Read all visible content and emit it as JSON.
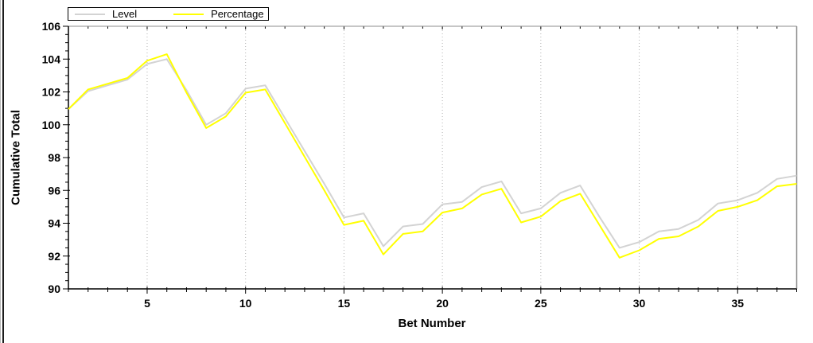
{
  "chart_data": {
    "type": "line",
    "title": "",
    "xlabel": "Bet Number",
    "ylabel": "Cumulative Total",
    "xlim": [
      1,
      38
    ],
    "ylim": [
      90,
      106
    ],
    "x_major_ticks": [
      5,
      10,
      15,
      20,
      25,
      30,
      35
    ],
    "x_minor_step": 1,
    "y_major_ticks": [
      90,
      92,
      94,
      96,
      98,
      100,
      102,
      104,
      106
    ],
    "y_minor_step": 0.5,
    "grid": "vertical dotted lines at x major ticks only",
    "legend_position": "top-left",
    "x": [
      1,
      2,
      3,
      4,
      5,
      6,
      7,
      8,
      9,
      10,
      11,
      12,
      13,
      14,
      15,
      16,
      17,
      18,
      19,
      20,
      21,
      22,
      23,
      24,
      25,
      26,
      27,
      28,
      29,
      30,
      31,
      32,
      33,
      34,
      35,
      36,
      37,
      38
    ],
    "series": [
      {
        "name": "Level",
        "color": "#d3d3d3",
        "values": [
          100.95,
          102.05,
          102.4,
          102.75,
          103.7,
          104.0,
          102.1,
          100.0,
          100.7,
          102.2,
          102.4,
          100.4,
          98.4,
          96.4,
          94.35,
          94.6,
          92.6,
          93.8,
          93.95,
          95.15,
          95.3,
          96.2,
          96.55,
          94.6,
          94.9,
          95.85,
          96.3,
          94.35,
          92.5,
          92.85,
          93.5,
          93.65,
          94.2,
          95.2,
          95.4,
          95.85,
          96.7,
          96.9
        ]
      },
      {
        "name": "Percentage",
        "color": "#ffff00",
        "values": [
          100.95,
          102.15,
          102.5,
          102.85,
          103.9,
          104.3,
          101.95,
          99.8,
          100.5,
          101.95,
          102.15,
          100.1,
          98.05,
          96.0,
          93.9,
          94.15,
          92.1,
          93.35,
          93.5,
          94.65,
          94.9,
          95.75,
          96.1,
          94.05,
          94.4,
          95.35,
          95.8,
          93.85,
          91.9,
          92.35,
          93.05,
          93.2,
          93.8,
          94.75,
          95.0,
          95.4,
          96.25,
          96.4
        ]
      }
    ],
    "style": {
      "grid_color": "#b0b0b0",
      "axis_color": "#000000",
      "box_color": "#8c8c8c",
      "text_color": "#000000",
      "background": "#ffffff"
    }
  }
}
